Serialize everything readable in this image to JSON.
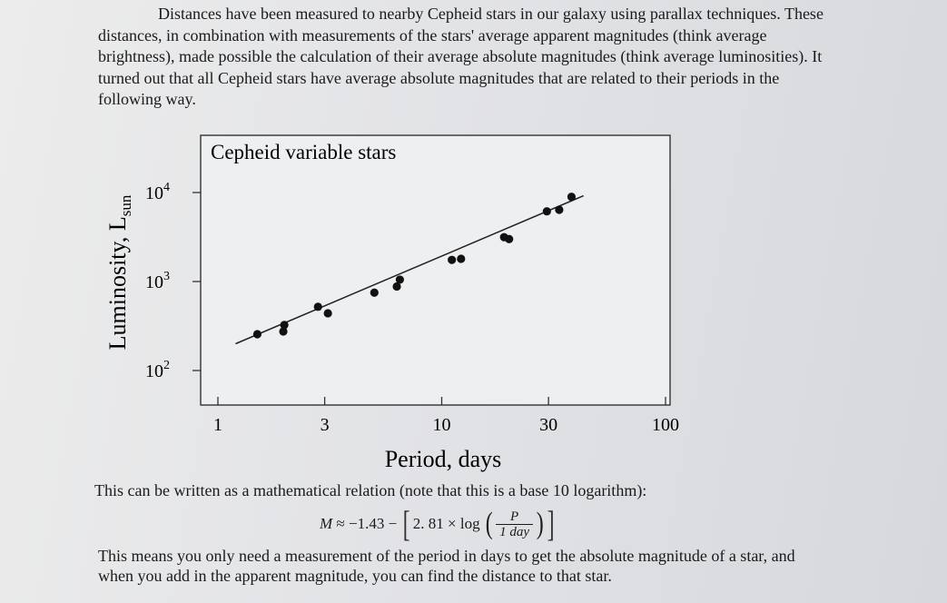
{
  "text": {
    "para1": "Distances have been measured to nearby Cepheid stars in our galaxy using parallax techniques. These distances, in combination with measurements of the stars' average apparent magnitudes (think average brightness), made possible the calculation of their average absolute magnitudes (think average luminosities). It turned out that all Cepheid stars have average absolute magnitudes that are related to their periods in the following way.",
    "para_mid": "This can be written as a mathematical relation (note that this is a base 10 logarithm):",
    "para2": "This means you only need a measurement of the period in days to get the absolute magnitude of a star, and when you add in the apparent magnitude, you can find the distance to that star."
  },
  "formula": {
    "lhs": "M",
    "approx": "≈ −1.43 −",
    "coef": "2. 81 × log",
    "num": "P",
    "den": "1 day"
  },
  "chart_data": {
    "type": "scatter",
    "title": "Cepheid variable stars",
    "xlabel": "Period, days",
    "ylabel": "Luminosity, L",
    "ylabel_sub": "sun",
    "x_scale": "log",
    "y_scale": "log",
    "xlim": [
      1,
      100
    ],
    "ylim": [
      65,
      30000
    ],
    "x_ticks": [
      {
        "value": 1,
        "label": "1"
      },
      {
        "value": 3,
        "label": "3"
      },
      {
        "value": 10,
        "label": "10"
      },
      {
        "value": 30,
        "label": "30"
      },
      {
        "value": 100,
        "label": "100"
      }
    ],
    "y_ticks": [
      {
        "value": 100,
        "label": "10",
        "sup": "2"
      },
      {
        "value": 1000,
        "label": "10",
        "sup": "3"
      },
      {
        "value": 10000,
        "label": "10",
        "sup": "4"
      }
    ],
    "points": [
      {
        "x": 1.5,
        "y": 256
      },
      {
        "x": 1.96,
        "y": 275
      },
      {
        "x": 1.98,
        "y": 325
      },
      {
        "x": 2.8,
        "y": 520
      },
      {
        "x": 3.1,
        "y": 440
      },
      {
        "x": 5.0,
        "y": 750
      },
      {
        "x": 6.3,
        "y": 880
      },
      {
        "x": 6.5,
        "y": 1050
      },
      {
        "x": 11.1,
        "y": 1750
      },
      {
        "x": 12.2,
        "y": 1800
      },
      {
        "x": 19.0,
        "y": 3150
      },
      {
        "x": 20.0,
        "y": 3000
      },
      {
        "x": 29.5,
        "y": 6150
      },
      {
        "x": 33.5,
        "y": 6400
      },
      {
        "x": 38.0,
        "y": 8950
      }
    ],
    "fit_line": {
      "x": [
        1.2,
        43.0
      ],
      "y": [
        200,
        9200
      ]
    },
    "grid": false,
    "legend": "none"
  }
}
